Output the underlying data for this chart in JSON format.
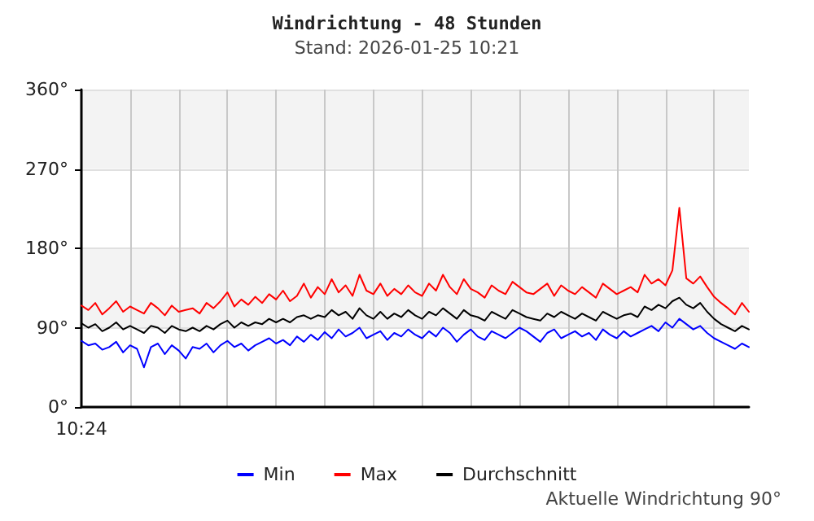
{
  "chart_data": {
    "type": "line",
    "title": "Windrichtung - 48 Stunden",
    "subtitle": "Stand: 2026-01-25 10:21",
    "annotations": [
      "Aktuelle Windrichtung 90°"
    ],
    "categories": [
      "10:24",
      null,
      null,
      null,
      null,
      null,
      null,
      null,
      null,
      null,
      null,
      null,
      null,
      null,
      null,
      null,
      null,
      null,
      null,
      null,
      null,
      null,
      null,
      null,
      null,
      null,
      null,
      null,
      null,
      null,
      null,
      null,
      null,
      null,
      null,
      null,
      null,
      null,
      null,
      null,
      null,
      null,
      null,
      null,
      null,
      null,
      null,
      null,
      null,
      null,
      null,
      null,
      null,
      null,
      null,
      null,
      null,
      null,
      null,
      null,
      null,
      null,
      null,
      null,
      null,
      null,
      null,
      null,
      null,
      null,
      null,
      null,
      null,
      null,
      null,
      null,
      null,
      null,
      null,
      null,
      null,
      null,
      null,
      null,
      null,
      null,
      null,
      null,
      null,
      null,
      null,
      null,
      null,
      null,
      null,
      null,
      null
    ],
    "series": [
      {
        "name": "Min",
        "color": "#0000ff",
        "values": [
          75,
          70,
          72,
          65,
          68,
          74,
          62,
          70,
          66,
          45,
          68,
          72,
          60,
          70,
          64,
          55,
          68,
          66,
          72,
          62,
          70,
          75,
          68,
          72,
          64,
          70,
          74,
          78,
          72,
          76,
          70,
          80,
          74,
          82,
          76,
          85,
          78,
          88,
          80,
          84,
          90,
          78,
          82,
          86,
          76,
          84,
          80,
          88,
          82,
          78,
          86,
          80,
          90,
          84,
          74,
          82,
          88,
          80,
          76,
          86,
          82,
          78,
          84,
          90,
          86,
          80,
          74,
          84,
          88,
          78,
          82,
          86,
          80,
          84,
          76,
          88,
          82,
          78,
          86,
          80,
          84,
          88,
          92,
          86,
          96,
          90,
          100,
          94,
          88,
          92,
          84,
          78,
          74,
          70,
          66,
          72,
          68
        ]
      },
      {
        "name": "Max",
        "color": "#ff0000",
        "values": [
          115,
          110,
          118,
          105,
          112,
          120,
          108,
          114,
          110,
          106,
          118,
          112,
          104,
          115,
          108,
          110,
          112,
          106,
          118,
          112,
          120,
          130,
          114,
          122,
          116,
          125,
          118,
          128,
          122,
          132,
          120,
          126,
          140,
          124,
          136,
          128,
          145,
          130,
          138,
          126,
          150,
          132,
          128,
          140,
          126,
          134,
          128,
          138,
          130,
          126,
          140,
          132,
          150,
          136,
          128,
          145,
          134,
          130,
          124,
          138,
          132,
          128,
          142,
          136,
          130,
          128,
          134,
          140,
          126,
          138,
          132,
          128,
          136,
          130,
          124,
          140,
          134,
          128,
          132,
          136,
          130,
          150,
          140,
          145,
          138,
          155,
          226,
          146,
          140,
          148,
          136,
          125,
          118,
          112,
          105,
          118,
          108
        ]
      },
      {
        "name": "Durchschnitt",
        "color": "#000000",
        "values": [
          95,
          90,
          94,
          86,
          90,
          96,
          88,
          92,
          88,
          84,
          92,
          90,
          84,
          92,
          88,
          86,
          90,
          86,
          92,
          88,
          94,
          98,
          90,
          96,
          92,
          96,
          94,
          100,
          96,
          100,
          96,
          102,
          104,
          100,
          104,
          102,
          110,
          104,
          108,
          100,
          112,
          104,
          100,
          108,
          100,
          106,
          102,
          110,
          104,
          100,
          108,
          104,
          112,
          106,
          100,
          110,
          104,
          102,
          98,
          108,
          104,
          100,
          110,
          106,
          102,
          100,
          98,
          106,
          102,
          108,
          104,
          100,
          106,
          102,
          98,
          108,
          104,
          100,
          104,
          106,
          102,
          114,
          110,
          116,
          112,
          120,
          124,
          116,
          112,
          118,
          108,
          100,
          94,
          90,
          86,
          92,
          88
        ]
      }
    ],
    "ylim": [
      0,
      360
    ],
    "yticks": [
      {
        "value": 0,
        "label": "0°"
      },
      {
        "value": 90,
        "label": "90°"
      },
      {
        "value": 180,
        "label": "180°"
      },
      {
        "value": 270,
        "label": "270°"
      },
      {
        "value": 360,
        "label": "360°"
      }
    ],
    "grid": true,
    "legend": "bottom",
    "marker": "none",
    "line_style": "solid"
  }
}
